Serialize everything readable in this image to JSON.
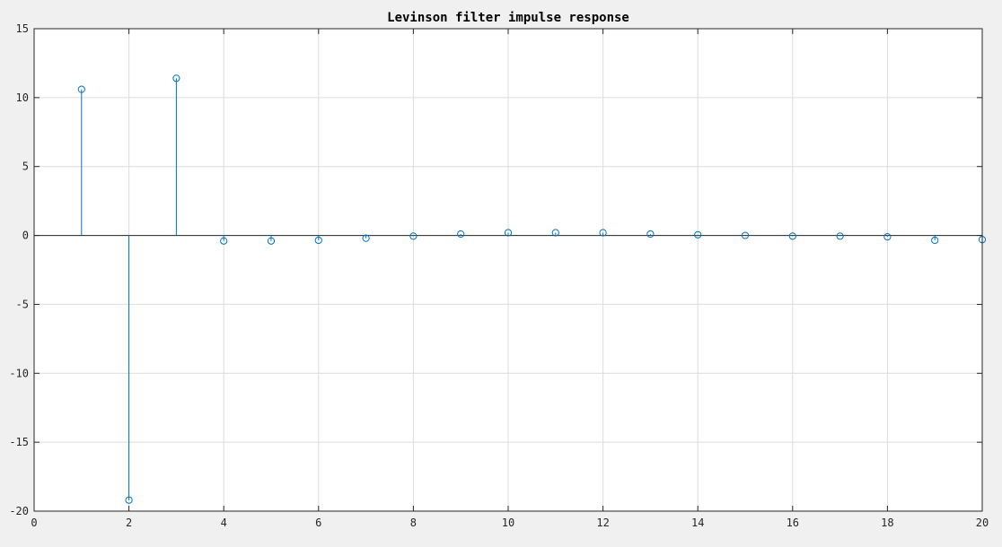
{
  "chart_data": {
    "type": "stem",
    "title": "Levinson filter impulse response",
    "xlabel": "",
    "ylabel": "",
    "xlim": [
      0,
      20
    ],
    "ylim": [
      -20,
      15
    ],
    "x_ticks": [
      0,
      2,
      4,
      6,
      8,
      10,
      12,
      14,
      16,
      18,
      20
    ],
    "y_ticks": [
      -20,
      -15,
      -10,
      -5,
      0,
      5,
      10,
      15
    ],
    "grid": true,
    "baseline": 0,
    "series_color": "#0072BD",
    "series": [
      {
        "x": [
          1,
          2,
          3,
          4,
          5,
          6,
          7,
          8,
          9,
          10,
          11,
          12,
          13,
          14,
          15,
          16,
          17,
          18,
          19,
          20
        ],
        "values": [
          10.6,
          -19.2,
          11.4,
          -0.4,
          -0.4,
          -0.35,
          -0.2,
          -0.05,
          0.1,
          0.2,
          0.2,
          0.2,
          0.1,
          0.05,
          0.0,
          -0.05,
          -0.05,
          -0.1,
          -0.35,
          -0.3
        ]
      }
    ]
  }
}
